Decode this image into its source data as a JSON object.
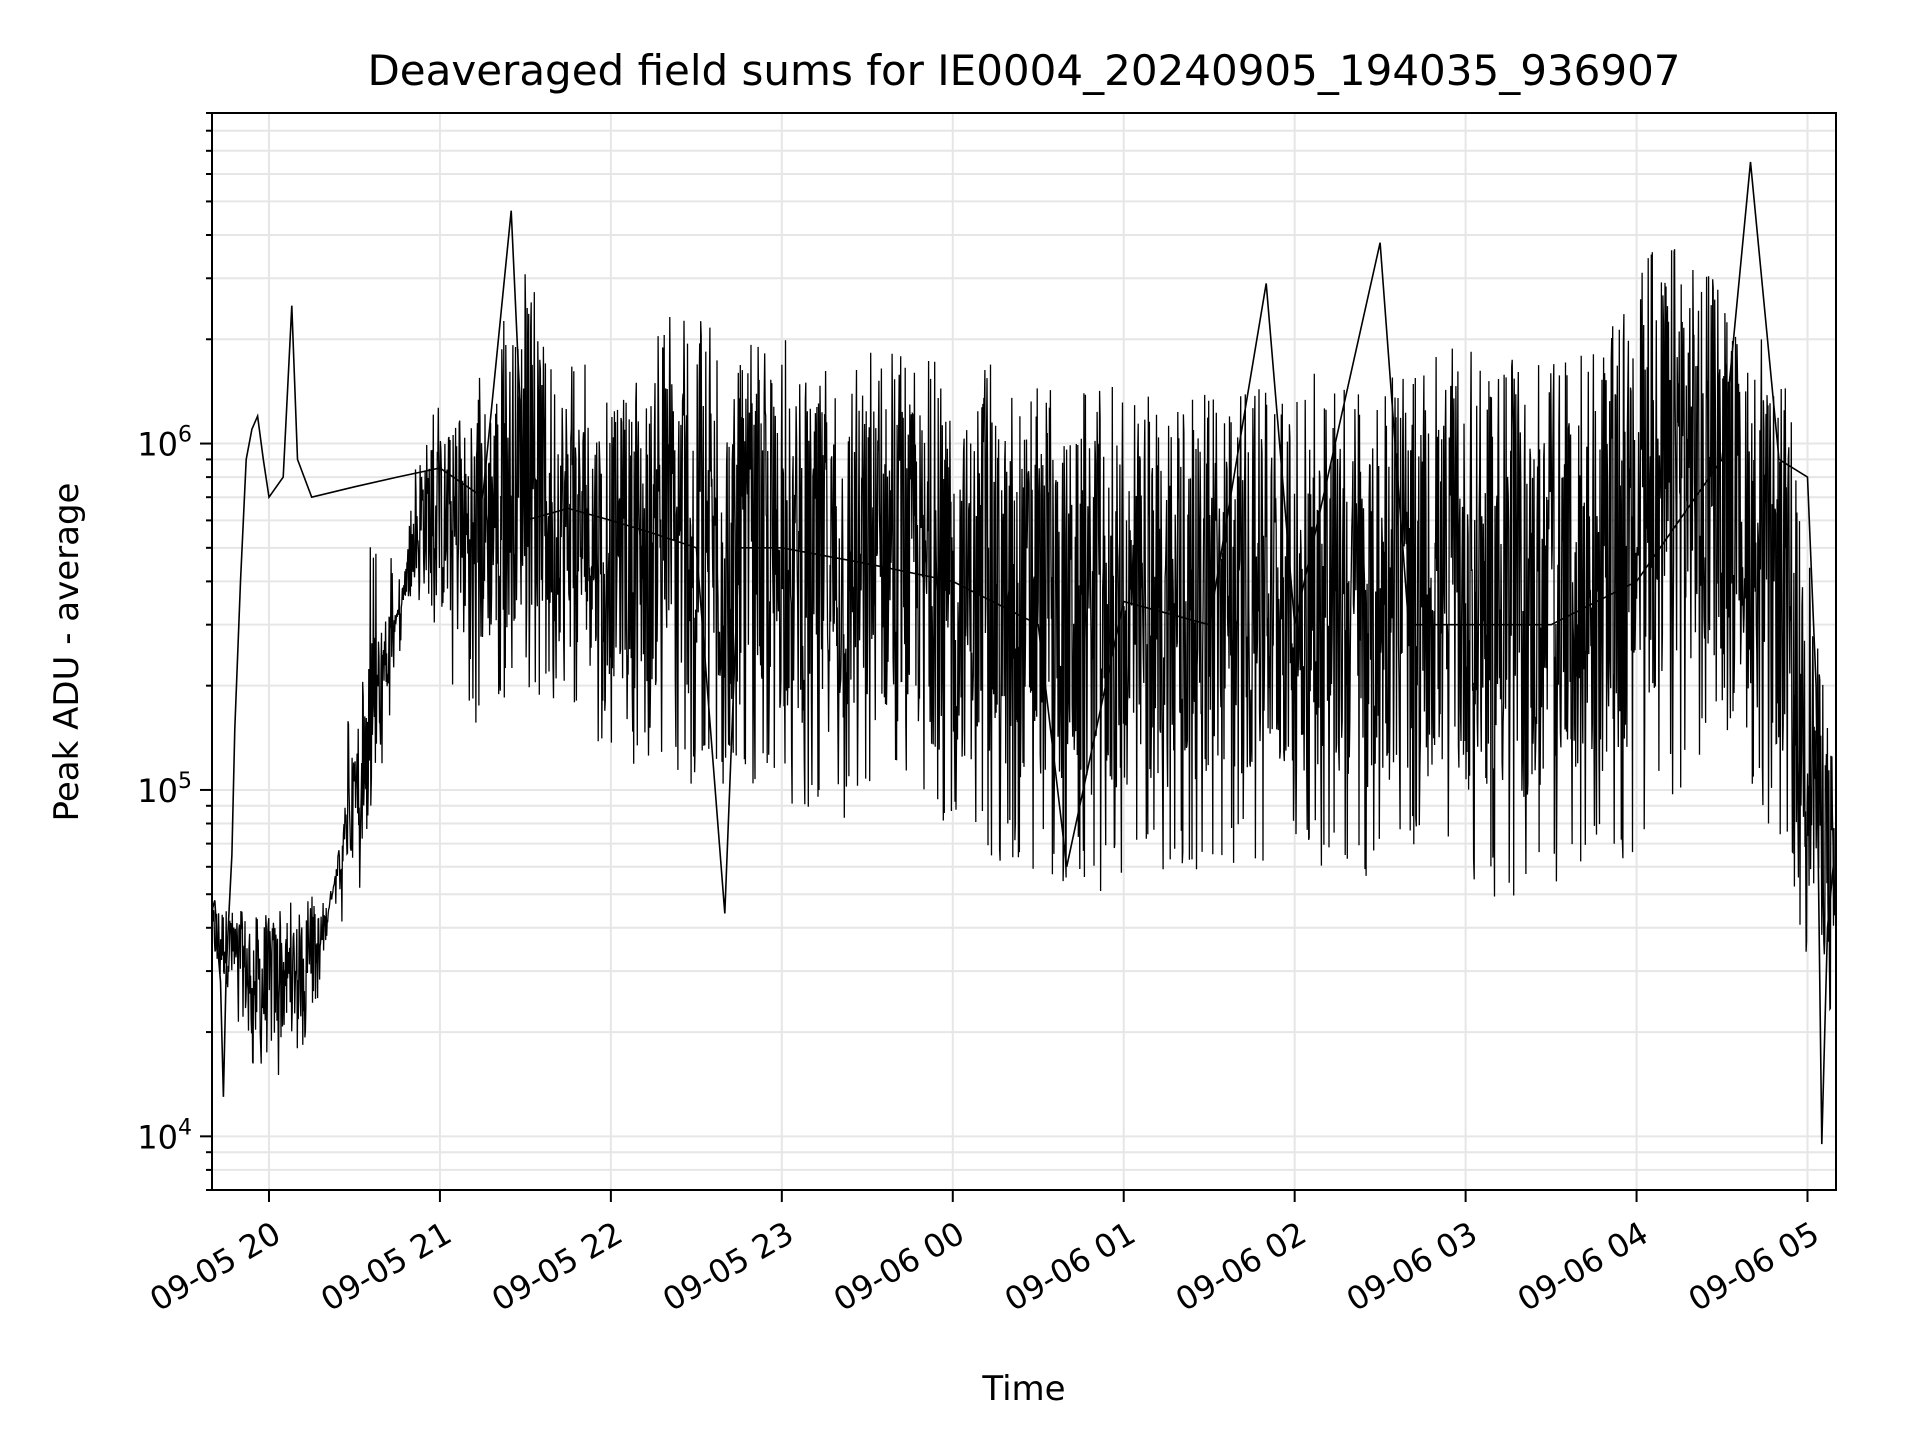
{
  "chart_data": {
    "type": "line",
    "title": "Deaveraged field sums for IE0004_20240905_194035_936907",
    "xlabel": "Time",
    "ylabel": "Peak ADU - average",
    "yscale": "log",
    "ylim": [
      7000,
      9000000
    ],
    "xlim": [
      "2024-09-05 19:40",
      "2024-09-06 05:10"
    ],
    "x_tick_labels": [
      "09-05 20",
      "09-05 21",
      "09-05 22",
      "09-05 23",
      "09-06 00",
      "09-06 01",
      "09-06 02",
      "09-06 03",
      "09-06 04",
      "09-06 05"
    ],
    "x_ticks": [
      "2024-09-05 20:00",
      "2024-09-05 21:00",
      "2024-09-05 22:00",
      "2024-09-05 23:00",
      "2024-09-06 00:00",
      "2024-09-06 01:00",
      "2024-09-06 02:00",
      "2024-09-06 03:00",
      "2024-09-06 04:00",
      "2024-09-06 05:00"
    ],
    "y_ticks": [
      {
        "base": "10",
        "exp": "4",
        "value": 10000
      },
      {
        "base": "10",
        "exp": "5",
        "value": 100000
      },
      {
        "base": "10",
        "exp": "6",
        "value": 1000000
      }
    ],
    "grid": true,
    "line_color": "#000000",
    "series": [
      {
        "x": [
          "2024-09-05 19:40",
          "2024-09-05 19:41",
          "2024-09-05 19:42",
          "2024-09-05 19:43",
          "2024-09-05 19:44",
          "2024-09-05 19:45",
          "2024-09-05 19:46",
          "2024-09-05 19:47",
          "2024-09-05 19:48",
          "2024-09-05 19:50",
          "2024-09-05 19:52",
          "2024-09-05 19:54",
          "2024-09-05 19:56",
          "2024-09-05 19:58",
          "2024-09-05 20:00",
          "2024-09-05 20:05",
          "2024-09-05 20:08",
          "2024-09-05 20:10",
          "2024-09-05 20:15",
          "2024-09-05 20:30",
          "2024-09-05 20:45",
          "2024-09-05 21:00",
          "2024-09-05 21:15",
          "2024-09-05 21:25",
          "2024-09-05 21:30",
          "2024-09-05 21:45",
          "2024-09-05 22:00",
          "2024-09-05 22:15",
          "2024-09-05 22:30",
          "2024-09-05 22:40",
          "2024-09-05 22:45",
          "2024-09-05 23:00",
          "2024-09-05 23:30",
          "2024-09-06 00:00",
          "2024-09-06 00:30",
          "2024-09-06 00:40",
          "2024-09-06 01:00",
          "2024-09-06 01:30",
          "2024-09-06 01:50",
          "2024-09-06 02:00",
          "2024-09-06 02:30",
          "2024-09-06 02:40",
          "2024-09-06 03:00",
          "2024-09-06 03:30",
          "2024-09-06 04:00",
          "2024-09-06 04:30",
          "2024-09-06 04:40",
          "2024-09-06 04:50",
          "2024-09-06 05:00",
          "2024-09-06 05:03",
          "2024-09-06 05:05",
          "2024-09-06 05:07",
          "2024-09-06 05:09"
        ],
        "y": [
          45000,
          48000,
          35000,
          28000,
          13000,
          30000,
          45000,
          65000,
          150000,
          400000,
          900000,
          1100000,
          1200000,
          900000,
          700000,
          800000,
          2500000,
          900000,
          700000,
          750000,
          800000,
          850000,
          700000,
          4700000,
          600000,
          650000,
          600000,
          550000,
          500000,
          44000,
          500000,
          500000,
          450000,
          400000,
          300000,
          60000,
          350000,
          300000,
          2900000,
          300000,
          3800000,
          300000,
          300000,
          300000,
          400000,
          900000,
          6500000,
          900000,
          800000,
          200000,
          9500,
          40000,
          60000
        ],
        "envelope_upper": [
          50000,
          50000,
          50000,
          60000,
          1200000,
          1500000,
          3200000,
          1700000,
          1700000,
          2700000,
          1900000,
          2000000,
          1800000,
          2000000,
          1700000,
          1700000,
          1600000,
          1500000,
          1400000,
          1400000,
          1500000,
          1600000,
          1400000,
          1700000,
          2000000,
          1800000,
          1700000,
          2500000,
          7000000,
          2200000,
          2000000,
          140000
        ],
        "envelope_lower": [
          30000,
          13000,
          20000,
          400000,
          300000,
          150000,
          200000,
          150000,
          120000,
          100000,
          100000,
          90000,
          80000,
          90000,
          70000,
          60000,
          55000,
          50000,
          55000,
          60000,
          60000,
          60000,
          55000,
          60000,
          50000,
          45000,
          55000,
          60000,
          100000,
          150000,
          60000,
          15000
        ]
      }
    ]
  }
}
